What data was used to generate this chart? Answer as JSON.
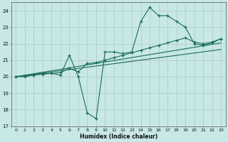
{
  "title": "",
  "xlabel": "Humidex (Indice chaleur)",
  "bg_color": "#c8e8e8",
  "grid_color": "#b0d0d0",
  "line_color": "#1a6b5a",
  "xlim": [
    -0.5,
    23.5
  ],
  "ylim": [
    17,
    24.5
  ],
  "yticks": [
    17,
    18,
    19,
    20,
    21,
    22,
    23,
    24
  ],
  "xticks": [
    0,
    1,
    2,
    3,
    4,
    5,
    6,
    7,
    8,
    9,
    10,
    11,
    12,
    13,
    14,
    15,
    16,
    17,
    18,
    19,
    20,
    21,
    22,
    23
  ],
  "series1_x": [
    0,
    1,
    2,
    3,
    4,
    5,
    6,
    7,
    8,
    9,
    10,
    11,
    12,
    13,
    14,
    15,
    16,
    17,
    18,
    19,
    20,
    21,
    22,
    23
  ],
  "series1_y": [
    20.0,
    20.0,
    20.1,
    20.2,
    20.2,
    20.1,
    21.3,
    20.0,
    17.8,
    17.45,
    21.5,
    21.5,
    21.4,
    21.5,
    23.35,
    24.2,
    23.7,
    23.7,
    23.35,
    23.0,
    22.0,
    21.9,
    22.05,
    22.3
  ],
  "series2_x": [
    0,
    1,
    2,
    3,
    4,
    5,
    6,
    7,
    8,
    9,
    10,
    11,
    12,
    13,
    14,
    15,
    16,
    17,
    18,
    19,
    20,
    21,
    22,
    23
  ],
  "series2_y": [
    20.0,
    20.05,
    20.1,
    20.15,
    20.2,
    20.25,
    20.5,
    20.3,
    20.8,
    20.85,
    21.0,
    21.15,
    21.3,
    21.45,
    21.6,
    21.75,
    21.9,
    22.05,
    22.2,
    22.35,
    22.1,
    22.0,
    22.1,
    22.3
  ],
  "trend1_x": [
    0,
    23
  ],
  "trend1_y": [
    20.0,
    22.05
  ],
  "trend2_x": [
    0,
    23
  ],
  "trend2_y": [
    20.0,
    21.65
  ]
}
